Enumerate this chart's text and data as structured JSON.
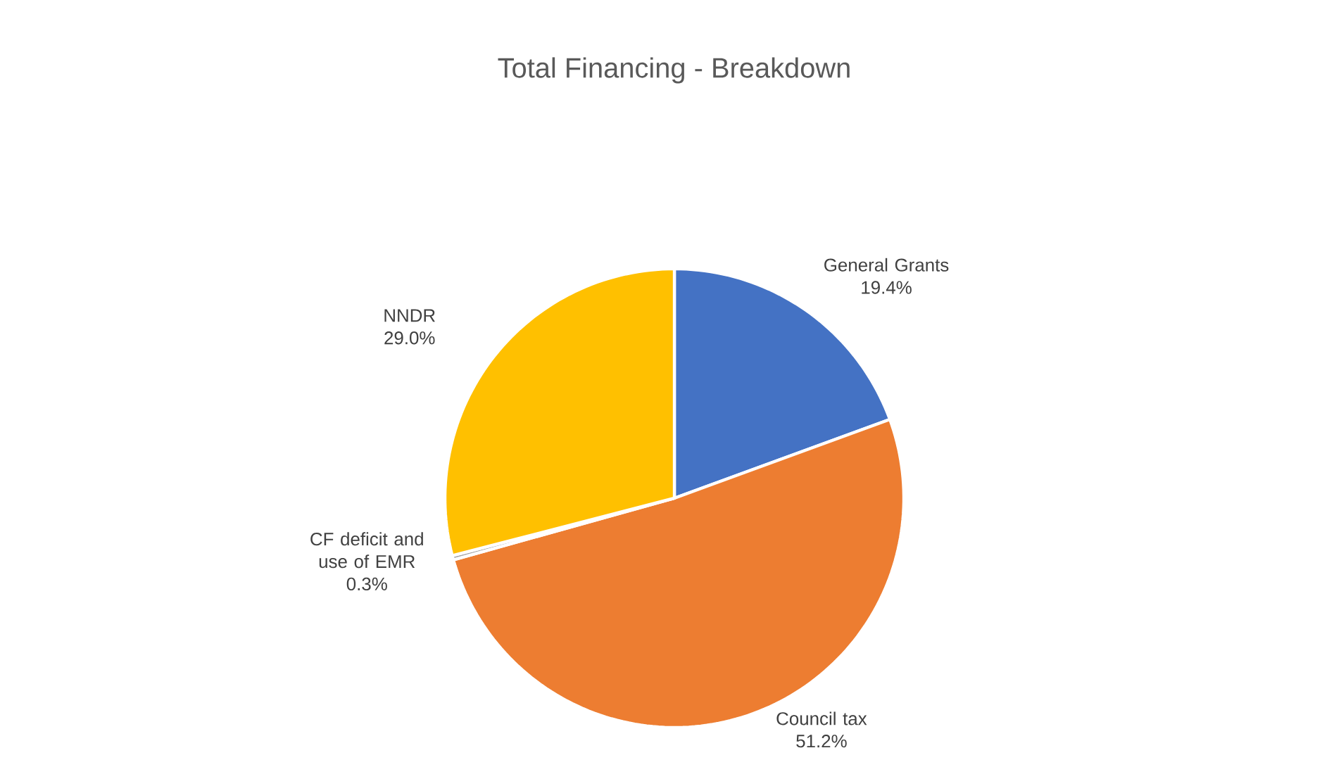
{
  "chart_data": {
    "type": "pie",
    "title": "Total Financing - Breakdown",
    "categories": [
      "General Grants",
      "Council tax",
      "CF deficit and use of EMR",
      "NNDR"
    ],
    "values": [
      19.4,
      51.2,
      0.3,
      29.0
    ],
    "value_labels": [
      "19.4%",
      "51.2%",
      "0.3%",
      "29.0%"
    ],
    "colors": [
      "#4472c4",
      "#ed7d31",
      "#a5a5a5",
      "#ffc000"
    ]
  }
}
